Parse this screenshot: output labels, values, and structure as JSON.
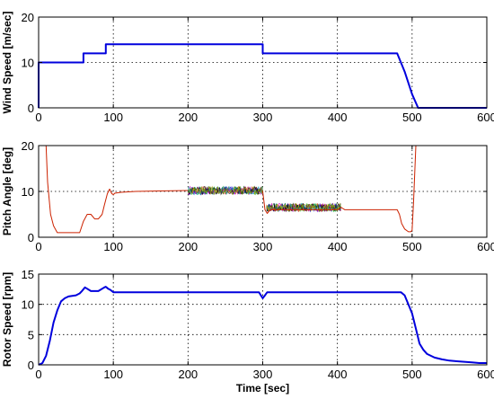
{
  "figure": {
    "background": "#ffffff"
  },
  "chart_data": [
    {
      "type": "line",
      "xlabel": "",
      "ylabel": "Wind Speed [m/sec]",
      "xlim": [
        0,
        600
      ],
      "ylim": [
        0,
        20
      ],
      "xticks": [
        0,
        100,
        200,
        300,
        400,
        500,
        600
      ],
      "yticks": [
        0,
        10,
        20
      ],
      "grid": true,
      "series": [
        {
          "color": "#0000dd",
          "x": [
            0,
            0,
            60,
            60,
            90,
            90,
            300,
            300,
            480,
            490,
            500,
            508,
            510,
            600
          ],
          "y": [
            0,
            10,
            10,
            12,
            12,
            14,
            14,
            12,
            12,
            8,
            3,
            0,
            0,
            0
          ]
        }
      ]
    },
    {
      "type": "line",
      "xlabel": "",
      "ylabel": "Pitch Angle [deg]",
      "xlim": [
        0,
        600
      ],
      "ylim": [
        0,
        20
      ],
      "xticks": [
        0,
        100,
        200,
        300,
        400,
        500,
        600
      ],
      "yticks": [
        0,
        10,
        20
      ],
      "grid": true,
      "series": [
        {
          "color": "#cc2200",
          "x": [
            10,
            12,
            16,
            20,
            25,
            40,
            55,
            60,
            65,
            70,
            75,
            80,
            85,
            88,
            92,
            95,
            98,
            100,
            102,
            110,
            130,
            160,
            200
          ],
          "y": [
            20,
            12,
            5,
            2.5,
            1,
            1,
            1,
            3.5,
            5,
            5,
            4,
            4,
            5,
            7,
            9.5,
            10.5,
            9.5,
            9.3,
            9.6,
            9.8,
            10,
            10.1,
            10.2
          ]
        },
        {
          "color": "#cc2200",
          "x": [
            300,
            303,
            306,
            310,
            400,
            405,
            410,
            420,
            480,
            483,
            486,
            490,
            495,
            498,
            500,
            502,
            505
          ],
          "y": [
            10,
            6,
            5.2,
            6,
            6,
            6.5,
            6,
            6,
            6,
            5,
            3,
            1.8,
            1.2,
            1.2,
            1.5,
            8,
            20
          ]
        }
      ],
      "oscillation_bands": [
        {
          "x_range": [
            200,
            300
          ],
          "center": 10.2,
          "amplitude": 0.9
        },
        {
          "x_range": [
            305,
            405
          ],
          "center": 6.5,
          "amplitude": 0.9
        }
      ]
    },
    {
      "type": "line",
      "xlabel": "Time [sec]",
      "ylabel": "Rotor Speed [rpm]",
      "xlim": [
        0,
        600
      ],
      "ylim": [
        0,
        15
      ],
      "xticks": [
        0,
        100,
        200,
        300,
        400,
        500,
        600
      ],
      "yticks": [
        0,
        5,
        10,
        15
      ],
      "grid": true,
      "series": [
        {
          "color": "#0000dd",
          "x": [
            0,
            5,
            10,
            15,
            20,
            25,
            30,
            35,
            40,
            50,
            55,
            58,
            62,
            66,
            70,
            75,
            80,
            88,
            90,
            93,
            96,
            100,
            150,
            200,
            250,
            295,
            300,
            303,
            306,
            310,
            400,
            450,
            485,
            490,
            495,
            500,
            505,
            510,
            515,
            520,
            530,
            540,
            550,
            560,
            570,
            580,
            590,
            600
          ],
          "y": [
            0,
            0.3,
            1.5,
            4,
            7,
            9,
            10.5,
            11,
            11.3,
            11.5,
            11.8,
            12.2,
            12.8,
            12.5,
            12.2,
            12.2,
            12.2,
            12.8,
            12.9,
            12.6,
            12.4,
            12,
            12,
            12,
            12,
            12,
            11,
            11.5,
            12,
            12,
            12,
            12,
            12,
            11.5,
            10,
            8.5,
            6,
            3.5,
            2.5,
            1.8,
            1.2,
            0.9,
            0.7,
            0.6,
            0.5,
            0.4,
            0.3,
            0.3
          ]
        }
      ]
    }
  ]
}
